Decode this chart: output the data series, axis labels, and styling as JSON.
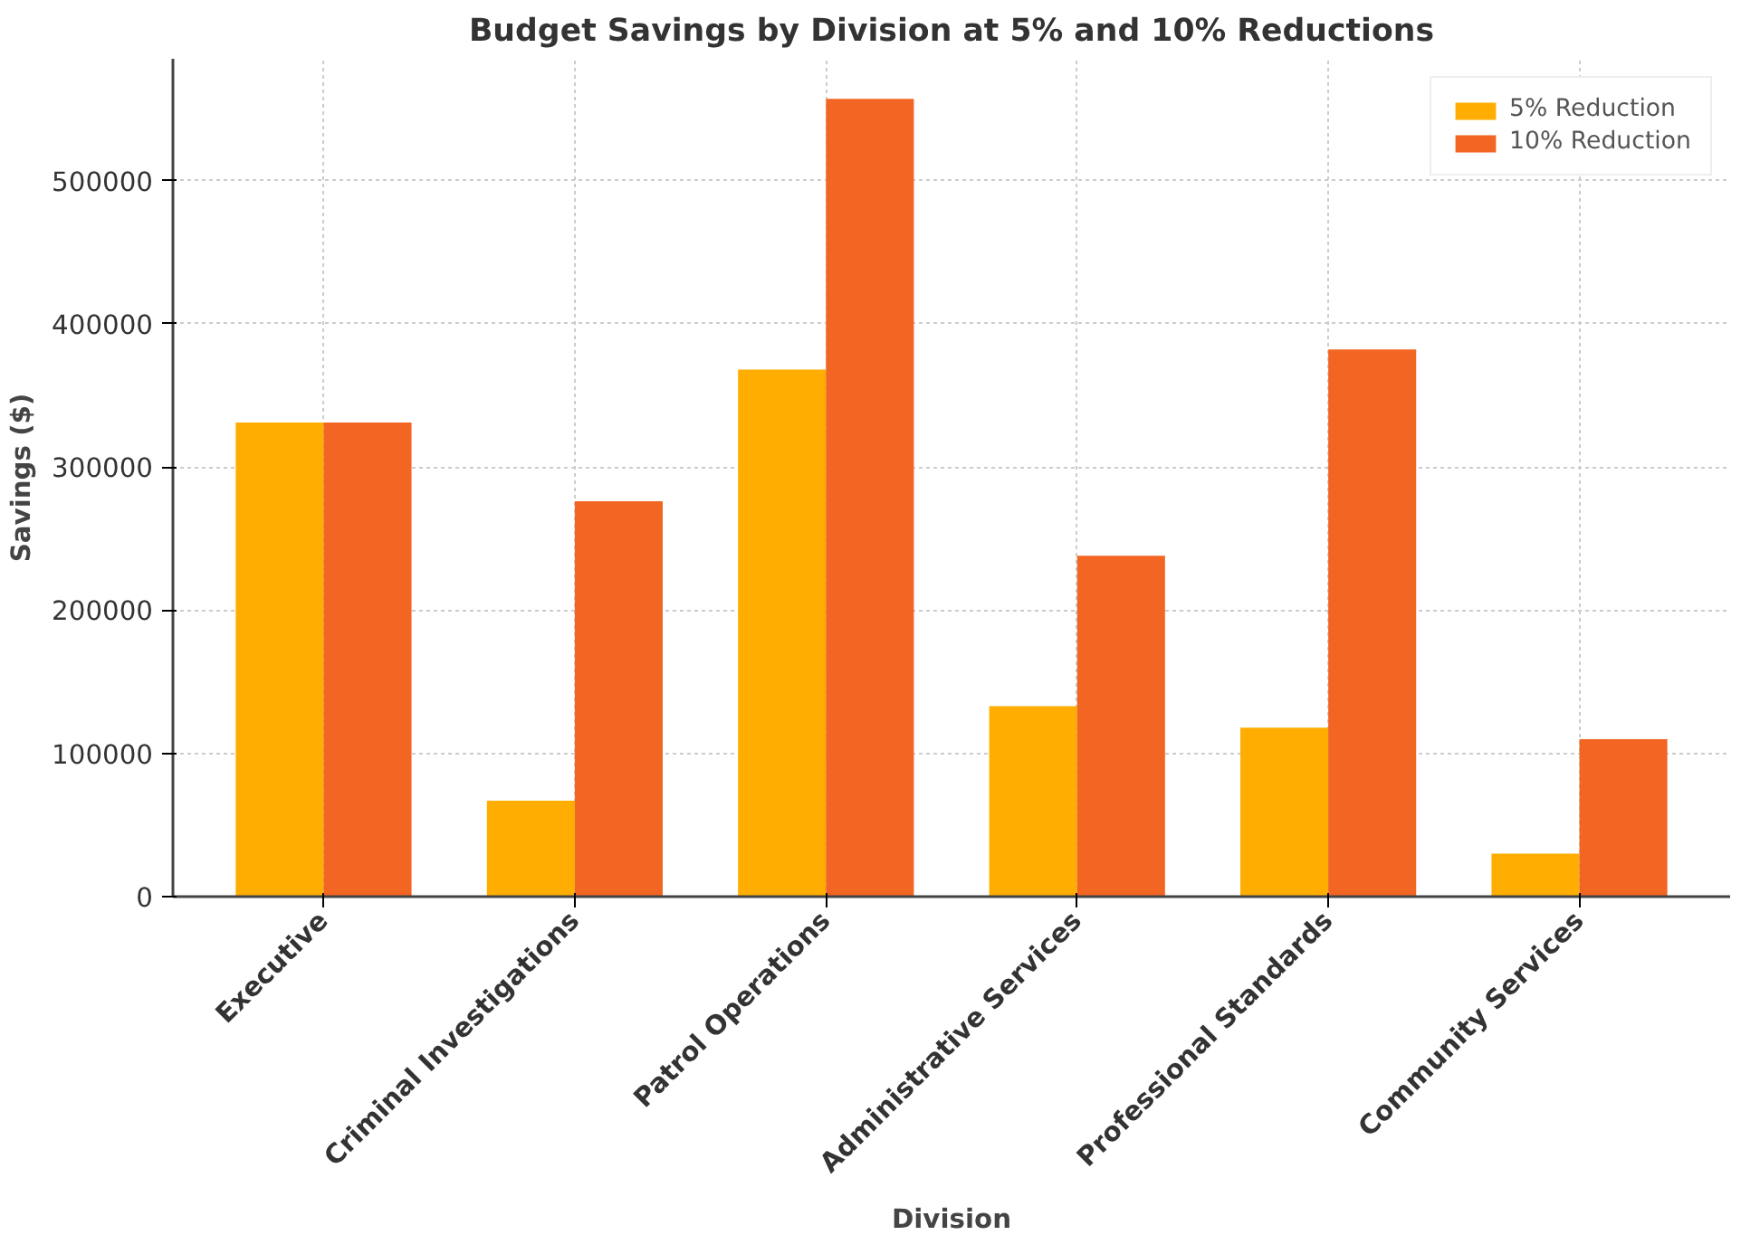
{
  "chart_data": {
    "type": "bar",
    "title": "Budget Savings by Division at 5% and 10% Reductions",
    "xlabel": "Division",
    "ylabel": "Savings ($)",
    "categories": [
      "Executive",
      "Criminal Investigations",
      "Patrol Operations",
      "Administrative Services",
      "Professional Standards",
      "Community Services"
    ],
    "series": [
      {
        "name": "5% Reduction",
        "color": "#ffad00",
        "values": [
          331000,
          67000,
          368000,
          133000,
          118000,
          30000
        ]
      },
      {
        "name": "10% Reduction",
        "color": "#f26522",
        "values": [
          331000,
          276000,
          557000,
          238000,
          382000,
          110000
        ]
      }
    ],
    "ylim": [
      0,
      585000
    ],
    "yticks": [
      0,
      100000,
      200000,
      300000,
      400000,
      500000
    ],
    "grid": true,
    "legend": "top right"
  }
}
